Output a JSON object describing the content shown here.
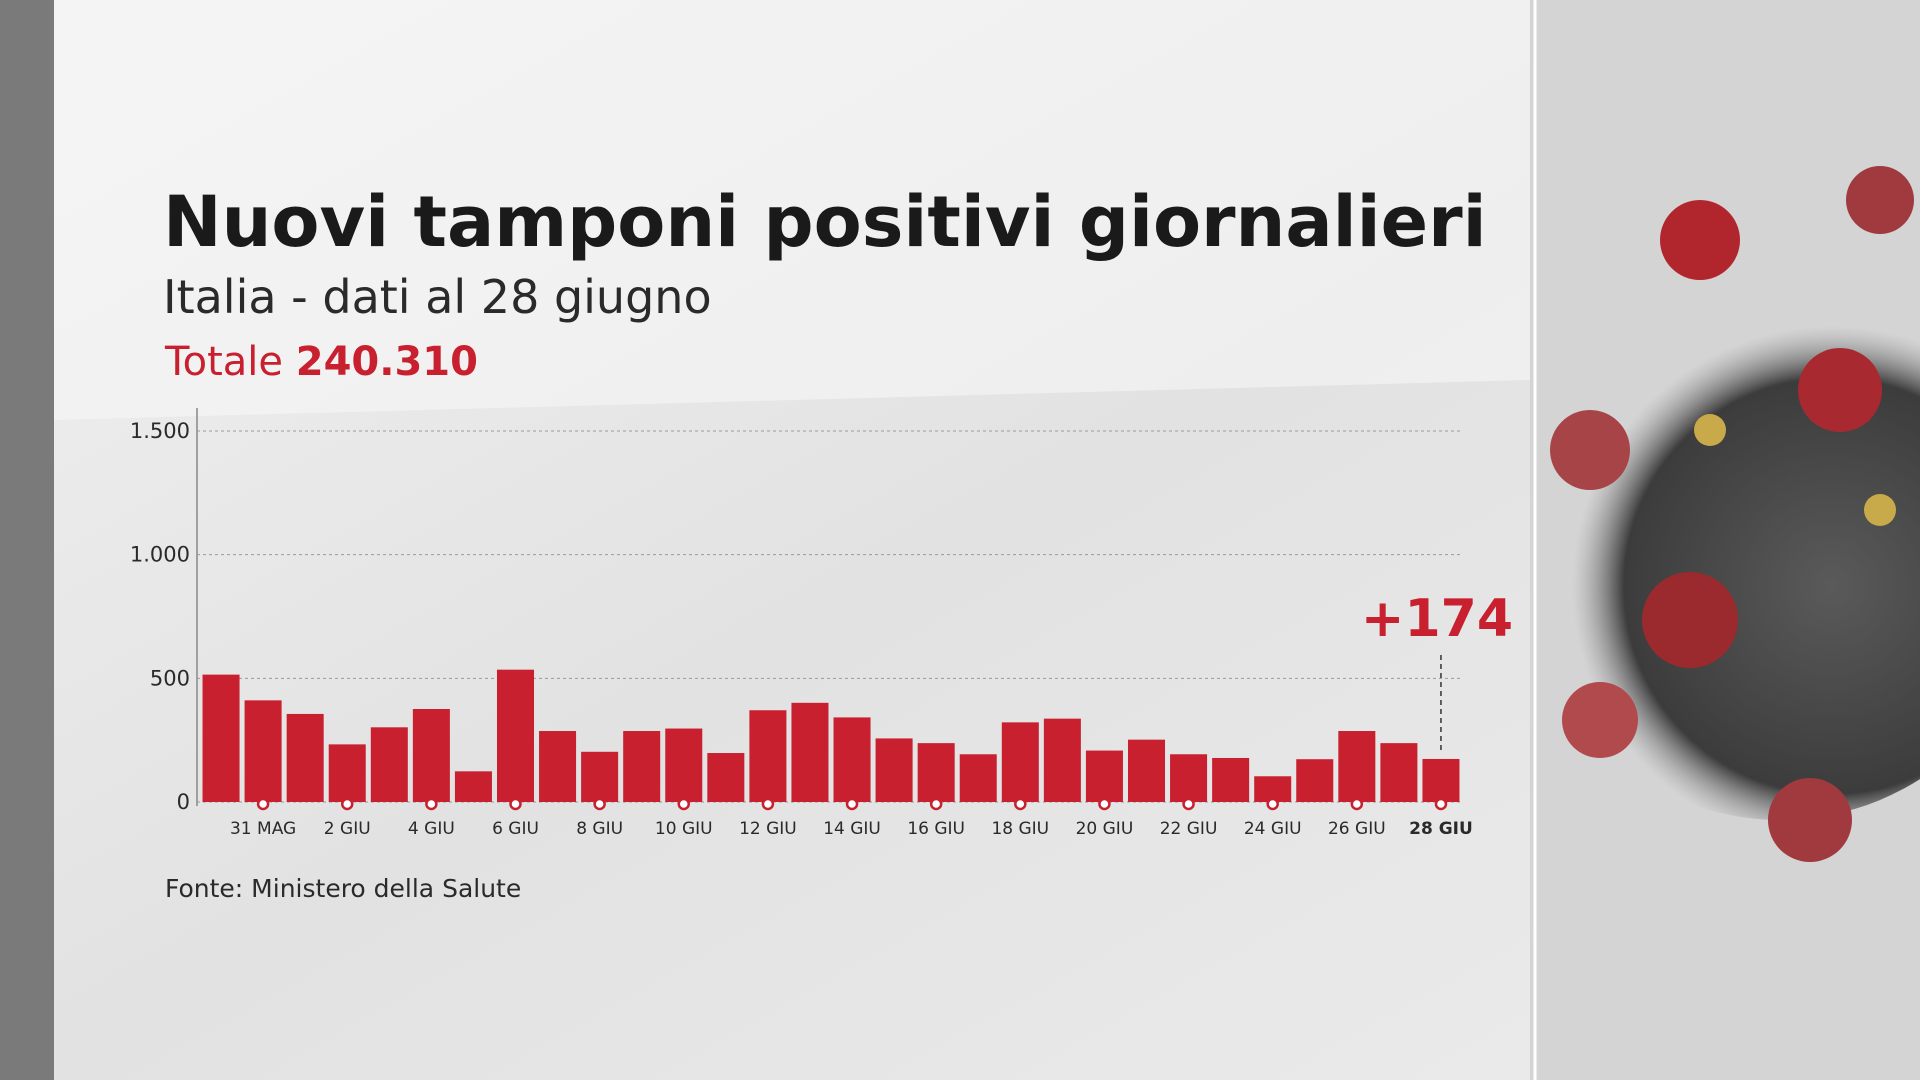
{
  "chart_data": {
    "type": "bar",
    "title": "Nuovi tamponi positivi giornalieri",
    "subtitle": "Italia - dati al 28 giugno",
    "total_label": "Totale",
    "total": "240.310",
    "source": "Fonte: Ministero della Salute",
    "categories": [
      null,
      "31 MAG",
      null,
      "2 GIU",
      null,
      "4 GIU",
      null,
      "6 GIU",
      null,
      "8 GIU",
      null,
      "10 GIU",
      null,
      "12 GIU",
      null,
      "14 GIU",
      null,
      "16 GIU",
      null,
      "18 GIU",
      null,
      "20 GIU",
      null,
      "22 GIU",
      null,
      "24 GIU",
      null,
      "26 GIU",
      null,
      "28 GIU"
    ],
    "values": [
      515,
      411,
      356,
      233,
      302,
      376,
      124,
      535,
      287,
      203,
      287,
      297,
      198,
      371,
      401,
      342,
      257,
      238,
      193,
      322,
      337,
      208,
      252,
      193,
      178,
      104,
      173,
      287,
      238,
      174
    ],
    "value_labels": [
      null,
      null,
      null,
      null,
      null,
      null,
      null,
      null,
      null,
      null,
      null,
      null,
      null,
      null,
      null,
      null,
      null,
      null,
      null,
      null,
      null,
      null,
      null,
      null,
      null,
      null,
      null,
      null,
      null,
      "+174"
    ],
    "color": "#c8202f",
    "ylim": [
      0,
      1500
    ],
    "yticks": [
      0,
      500,
      {
        "value": 1000,
        "label": "1.000"
      },
      {
        "value": 1500,
        "label": "1.500"
      }
    ],
    "grid": true
  }
}
